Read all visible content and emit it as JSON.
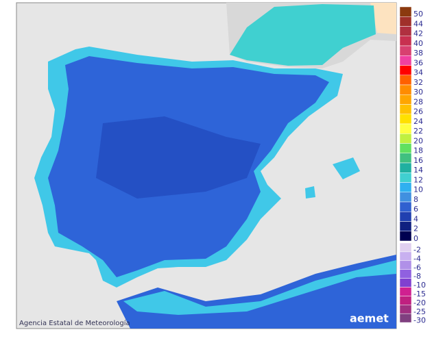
{
  "map": {
    "credit": "Agencia Estatal de Meteorología",
    "logo": "aemet",
    "legend_positive": [
      {
        "value": 50,
        "color": "#8b3a0f"
      },
      {
        "value": 44,
        "color": "#a0302a"
      },
      {
        "value": 42,
        "color": "#b03040"
      },
      {
        "value": 40,
        "color": "#c83050"
      },
      {
        "value": 38,
        "color": "#d84070"
      },
      {
        "value": 36,
        "color": "#f040a0"
      },
      {
        "value": 34,
        "color": "#ff0000"
      },
      {
        "value": 32,
        "color": "#ff6000"
      },
      {
        "value": 30,
        "color": "#ff8c00"
      },
      {
        "value": 28,
        "color": "#ffa500"
      },
      {
        "value": 26,
        "color": "#ffc000"
      },
      {
        "value": 24,
        "color": "#ffe000"
      },
      {
        "value": 22,
        "color": "#ffff40"
      },
      {
        "value": 20,
        "color": "#c0f040"
      },
      {
        "value": 18,
        "color": "#60e060"
      },
      {
        "value": 16,
        "color": "#40c080"
      },
      {
        "value": 14,
        "color": "#20b0a0"
      },
      {
        "value": 12,
        "color": "#40d0d0"
      },
      {
        "value": 10,
        "color": "#30b0f0"
      },
      {
        "value": 8,
        "color": "#4090e0"
      },
      {
        "value": 6,
        "color": "#3060d0"
      },
      {
        "value": 4,
        "color": "#2040b0"
      },
      {
        "value": 2,
        "color": "#102080"
      },
      {
        "value": 0,
        "color": "#000050"
      }
    ],
    "legend_negative": [
      {
        "value": -2,
        "color": "#e0d0f0"
      },
      {
        "value": -4,
        "color": "#c8b0f0"
      },
      {
        "value": -6,
        "color": "#b090e8"
      },
      {
        "value": -8,
        "color": "#9060e0"
      },
      {
        "value": -10,
        "color": "#8040d0"
      },
      {
        "value": -15,
        "color": "#d02090"
      },
      {
        "value": -20,
        "color": "#c02080"
      },
      {
        "value": -25,
        "color": "#a03080"
      },
      {
        "value": -30,
        "color": "#804080"
      }
    ]
  }
}
